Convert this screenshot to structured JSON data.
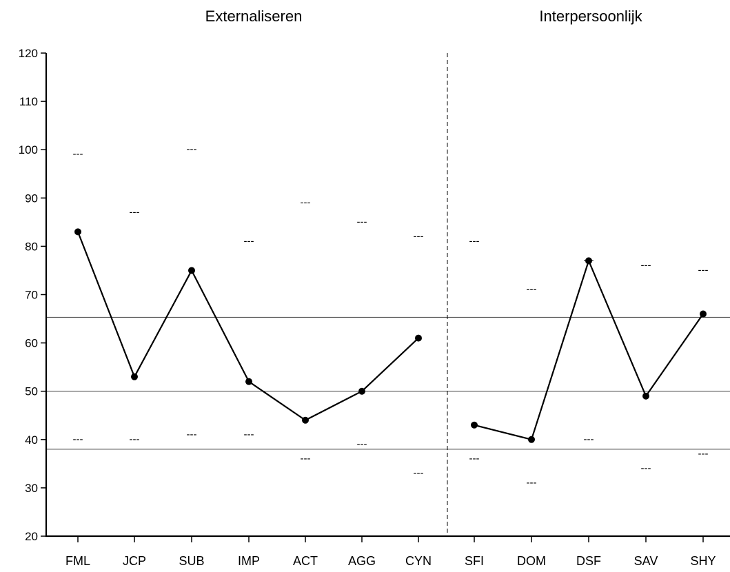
{
  "chart_data": {
    "type": "line",
    "groups": [
      {
        "title": "Externaliseren",
        "categories": [
          "FML",
          "JCP",
          "SUB",
          "IMP",
          "ACT",
          "AGG",
          "CYN"
        ]
      },
      {
        "title": "Interpersoonlijk",
        "categories": [
          "SFI",
          "DOM",
          "DSF",
          "SAV",
          "SHY"
        ]
      }
    ],
    "categories": [
      "FML",
      "JCP",
      "SUB",
      "IMP",
      "ACT",
      "AGG",
      "CYN",
      "SFI",
      "DOM",
      "DSF",
      "SAV",
      "SHY"
    ],
    "series": [
      {
        "values": [
          83,
          53,
          75,
          52,
          44,
          50,
          61,
          43,
          40,
          77,
          49,
          66
        ]
      }
    ],
    "upper_marks": [
      99,
      87,
      100,
      81,
      89,
      85,
      82,
      81,
      71,
      77,
      76,
      75
    ],
    "lower_marks": [
      40,
      40,
      41,
      41,
      36,
      39,
      33,
      36,
      31,
      40,
      34,
      37
    ],
    "reference_lines": [
      65.3,
      50,
      38
    ],
    "ylim": [
      20,
      120
    ],
    "yticks": [
      20,
      30,
      40,
      50,
      60,
      70,
      80,
      90,
      100,
      110,
      120
    ],
    "xlabel": "",
    "ylabel": "",
    "grid": false,
    "marker_symbol": "---"
  }
}
